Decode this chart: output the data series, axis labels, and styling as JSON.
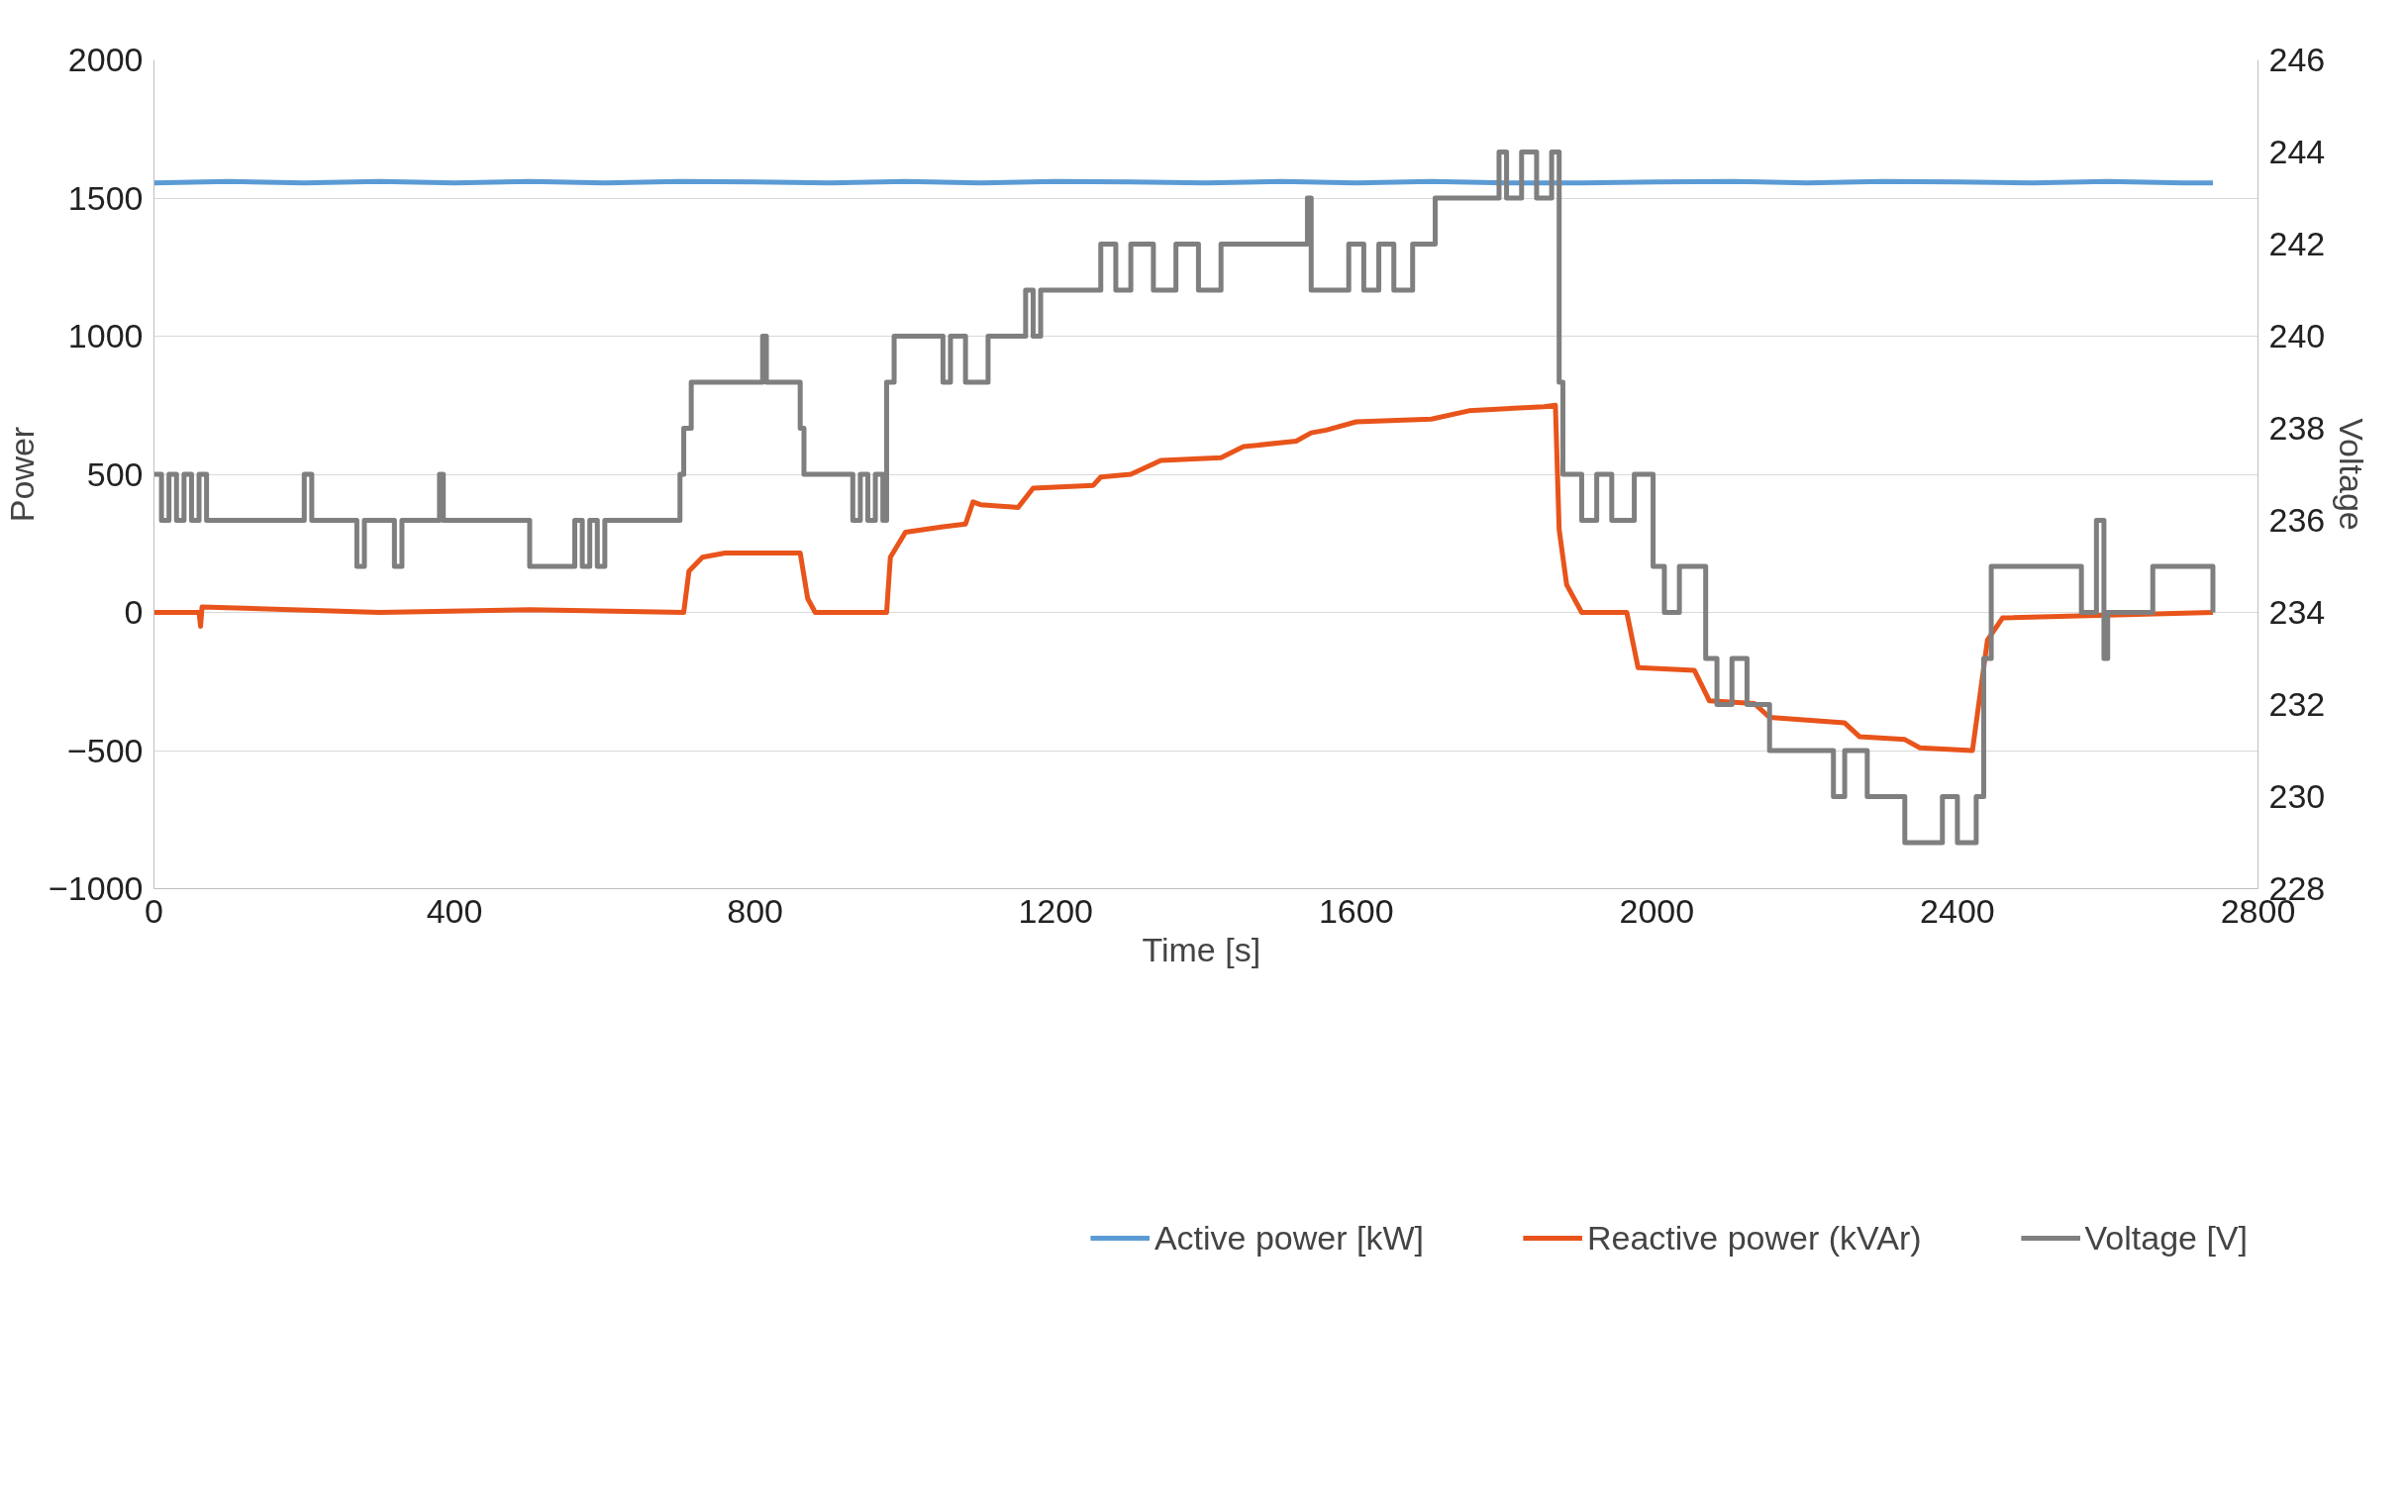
{
  "chart_data": {
    "type": "line",
    "xlabel": "Time  [s]",
    "ylabel": "Power",
    "y2label": "Voltage",
    "xlim": [
      0,
      2800
    ],
    "xticks": [
      0,
      400,
      800,
      1200,
      1600,
      2000,
      2400,
      2800
    ],
    "ylim": [
      -1000,
      2000
    ],
    "yticks": [
      -1000,
      -500,
      0,
      500,
      1000,
      1500,
      2000
    ],
    "y2lim": [
      228,
      246
    ],
    "y2ticks": [
      228,
      230,
      232,
      234,
      236,
      238,
      240,
      242,
      244,
      246
    ],
    "grid": "y",
    "legend": "bottom",
    "line_style": "solid",
    "marker": "none",
    "series": [
      {
        "name": "Active power [kW]",
        "color": "#5b9bd5",
        "x": [
          0,
          100,
          200,
          300,
          400,
          500,
          600,
          700,
          800,
          900,
          1000,
          1100,
          1200,
          1300,
          1400,
          1500,
          1600,
          1700,
          1800,
          1900,
          2000,
          2100,
          2200,
          2300,
          2400,
          2500,
          2600,
          2700,
          2740
        ],
        "values": [
          1555,
          1560,
          1555,
          1560,
          1555,
          1560,
          1555,
          1560,
          1558,
          1555,
          1560,
          1555,
          1560,
          1558,
          1555,
          1560,
          1555,
          1560,
          1555,
          1555,
          1558,
          1560,
          1555,
          1560,
          1558,
          1555,
          1560,
          1555,
          1555
        ]
      },
      {
        "name": "Reactive power (kVAr)",
        "color": "#e8541b",
        "x": [
          0,
          60,
          62,
          64,
          300,
          500,
          705,
          712,
          730,
          760,
          800,
          860,
          870,
          880,
          975,
          980,
          1000,
          1050,
          1080,
          1090,
          1100,
          1150,
          1170,
          1250,
          1260,
          1300,
          1340,
          1420,
          1450,
          1520,
          1540,
          1560,
          1600,
          1700,
          1750,
          1850,
          1865,
          1870,
          1880,
          1900,
          1960,
          1975,
          2050,
          2070,
          2130,
          2150,
          2250,
          2270,
          2330,
          2350,
          2420,
          2440,
          2460,
          2740
        ],
        "values": [
          0,
          0,
          -50,
          20,
          0,
          10,
          0,
          150,
          200,
          215,
          215,
          215,
          50,
          0,
          0,
          200,
          290,
          310,
          320,
          400,
          390,
          380,
          450,
          460,
          490,
          500,
          550,
          560,
          600,
          620,
          650,
          660,
          690,
          700,
          730,
          745,
          750,
          300,
          100,
          0,
          0,
          -200,
          -210,
          -320,
          -330,
          -380,
          -400,
          -450,
          -460,
          -490,
          -500,
          -100,
          -20,
          0
        ]
      },
      {
        "name": "Voltage [V]",
        "color": "#7f7f7f",
        "axis": "y2",
        "type": "step",
        "x": [
          0,
          10,
          20,
          30,
          40,
          50,
          60,
          70,
          200,
          210,
          270,
          280,
          320,
          330,
          380,
          385,
          500,
          560,
          570,
          580,
          590,
          600,
          700,
          705,
          715,
          810,
          815,
          860,
          865,
          930,
          940,
          950,
          960,
          970,
          975,
          985,
          1050,
          1060,
          1080,
          1110,
          1160,
          1170,
          1180,
          1260,
          1280,
          1300,
          1330,
          1360,
          1390,
          1420,
          1535,
          1540,
          1590,
          1610,
          1630,
          1650,
          1675,
          1705,
          1790,
          1800,
          1820,
          1840,
          1860,
          1870,
          1875,
          1900,
          1920,
          1940,
          1970,
          1995,
          2010,
          2030,
          2065,
          2080,
          2100,
          2120,
          2150,
          2235,
          2250,
          2280,
          2330,
          2380,
          2400,
          2425,
          2435,
          2445,
          2565,
          2585,
          2595,
          2600,
          2660,
          2740
        ],
        "values": [
          237,
          236,
          237,
          236,
          237,
          236,
          237,
          236,
          237,
          236,
          235,
          236,
          235,
          236,
          237,
          236,
          235,
          236,
          235,
          236,
          235,
          236,
          237,
          238,
          239,
          240,
          239,
          238,
          237,
          236,
          237,
          236,
          237,
          236,
          239,
          240,
          239,
          240,
          239,
          240,
          241,
          240,
          241,
          242,
          241,
          242,
          241,
          242,
          241,
          242,
          243,
          241,
          242,
          241,
          242,
          241,
          242,
          243,
          244,
          243,
          244,
          243,
          244,
          239,
          237,
          236,
          237,
          236,
          237,
          235,
          234,
          235,
          233,
          232,
          233,
          232,
          231,
          230,
          231,
          230,
          229,
          230,
          229,
          230,
          233,
          235,
          234,
          236,
          233,
          234,
          235,
          234
        ]
      }
    ]
  }
}
